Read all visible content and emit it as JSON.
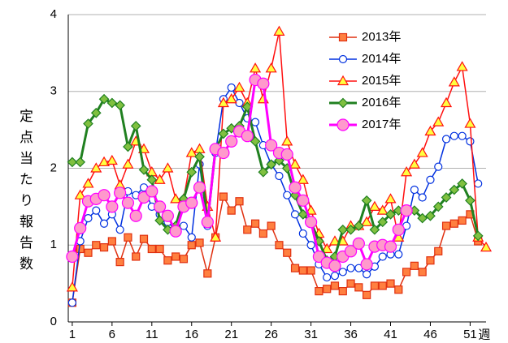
{
  "chart_data": {
    "type": "line",
    "ylabel": "定点当たり報告数",
    "xlabel": "週",
    "x": [
      1,
      2,
      3,
      4,
      5,
      6,
      7,
      8,
      9,
      10,
      11,
      12,
      13,
      14,
      15,
      16,
      17,
      18,
      19,
      20,
      21,
      22,
      23,
      24,
      25,
      26,
      27,
      28,
      29,
      30,
      31,
      32,
      33,
      34,
      35,
      36,
      37,
      38,
      39,
      40,
      41,
      42,
      43,
      44,
      45,
      46,
      47,
      48,
      49,
      50,
      51,
      52,
      53
    ],
    "xlim": [
      0.5,
      53
    ],
    "xticks": [
      1,
      6,
      11,
      16,
      21,
      26,
      31,
      36,
      41,
      46,
      51
    ],
    "ylim": [
      0,
      4
    ],
    "yticks": [
      0,
      1,
      2,
      3,
      4
    ],
    "grid": true,
    "legend": "top",
    "series": [
      {
        "name": "2013年",
        "color": "#e03010",
        "marker": "square",
        "marker_fill": "#ff8040",
        "values": [
          0.25,
          0.95,
          0.9,
          1.0,
          0.97,
          1.05,
          0.78,
          1.1,
          0.85,
          1.08,
          0.95,
          0.95,
          0.8,
          0.85,
          0.82,
          1.0,
          1.03,
          0.63,
          1.1,
          1.63,
          1.45,
          1.57,
          1.2,
          1.28,
          1.15,
          1.25,
          1.0,
          0.9,
          0.7,
          0.67,
          0.67,
          0.4,
          0.43,
          0.47,
          0.4,
          0.5,
          0.45,
          0.35,
          0.47,
          0.47,
          0.5,
          0.42,
          0.65,
          0.73,
          0.65,
          0.8,
          0.92,
          1.25,
          1.28,
          1.32,
          1.4,
          1.05,
          null
        ]
      },
      {
        "name": "2014年",
        "color": "#0030e0",
        "marker": "circle",
        "marker_fill": "#ffffff",
        "values": [
          0.25,
          1.05,
          1.35,
          1.45,
          1.28,
          1.4,
          1.2,
          1.7,
          1.65,
          1.75,
          1.5,
          1.4,
          1.3,
          1.2,
          1.25,
          1.1,
          2.05,
          1.25,
          2.2,
          2.9,
          3.05,
          2.85,
          2.65,
          2.6,
          2.3,
          2.05,
          1.9,
          1.65,
          1.4,
          1.15,
          1.0,
          0.75,
          0.58,
          0.6,
          0.65,
          0.7,
          0.7,
          0.62,
          0.72,
          0.85,
          0.88,
          0.88,
          1.25,
          1.72,
          1.62,
          1.85,
          2.02,
          2.38,
          2.42,
          2.42,
          2.35,
          1.8,
          null
        ]
      },
      {
        "name": "2015年",
        "color": "#ff1010",
        "marker": "triangle",
        "marker_fill": "#ffff40",
        "values": [
          0.45,
          1.65,
          1.8,
          2.0,
          2.08,
          2.1,
          1.78,
          2.05,
          2.35,
          2.25,
          1.95,
          1.85,
          2.0,
          1.6,
          1.6,
          2.2,
          2.25,
          1.5,
          1.1,
          2.85,
          2.9,
          3.05,
          2.85,
          3.3,
          2.9,
          3.3,
          3.78,
          2.35,
          2.05,
          1.85,
          1.45,
          1.15,
          0.95,
          1.05,
          1.05,
          1.25,
          1.25,
          1.3,
          1.5,
          1.45,
          1.6,
          1.1,
          1.95,
          2.05,
          2.2,
          2.48,
          2.6,
          2.85,
          3.12,
          3.32,
          2.58,
          1.1,
          0.97
        ]
      },
      {
        "name": "2016年",
        "color": "#208020",
        "marker": "diamond",
        "marker_fill": "#80c040",
        "values": [
          2.08,
          2.08,
          2.58,
          2.72,
          2.9,
          2.85,
          2.82,
          2.28,
          2.55,
          1.98,
          1.85,
          1.32,
          1.2,
          1.25,
          1.6,
          1.95,
          2.15,
          1.3,
          2.25,
          2.45,
          2.52,
          2.55,
          2.8,
          2.35,
          1.95,
          2.05,
          2.1,
          2.0,
          1.65,
          1.4,
          1.3,
          1.05,
          0.8,
          0.85,
          1.2,
          1.2,
          1.25,
          1.58,
          1.2,
          1.3,
          1.4,
          1.45,
          1.45,
          1.45,
          1.35,
          1.38,
          1.5,
          1.62,
          1.72,
          1.8,
          1.58,
          1.12,
          null
        ]
      },
      {
        "name": "2017年",
        "color": "#ff00ff",
        "marker": "circle",
        "marker_fill": "#ff99cc",
        "values": [
          0.85,
          1.22,
          1.57,
          1.6,
          1.65,
          1.5,
          1.68,
          1.55,
          1.38,
          1.62,
          1.7,
          1.5,
          1.38,
          1.18,
          1.5,
          1.55,
          1.75,
          1.3,
          2.25,
          2.2,
          2.35,
          2.48,
          2.42,
          3.15,
          3.1,
          2.3,
          2.2,
          2.18,
          1.75,
          1.58,
          1.3,
          0.85,
          0.77,
          0.73,
          0.85,
          0.92,
          1.02,
          0.75,
          0.98,
          1.0,
          0.98,
          1.2,
          1.45,
          null,
          null,
          null,
          null,
          null,
          null,
          null,
          null,
          null,
          null
        ]
      }
    ]
  }
}
